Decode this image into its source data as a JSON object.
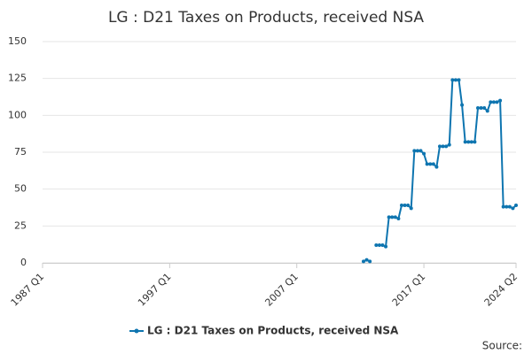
{
  "chart_data": {
    "type": "line",
    "title": "LG : D21 Taxes on Products, received NSA",
    "source_label": "Source:",
    "categories": [
      "1987 Q1",
      null,
      null,
      null,
      null,
      null,
      null,
      null,
      null,
      null,
      null,
      null,
      null,
      null,
      null,
      null,
      null,
      null,
      null,
      null,
      null,
      null,
      null,
      null,
      null,
      null,
      null,
      null,
      null,
      null,
      null,
      null,
      null,
      null,
      null,
      null,
      null,
      null,
      null,
      null,
      "1997 Q1",
      null,
      null,
      null,
      null,
      null,
      null,
      null,
      null,
      null,
      null,
      null,
      null,
      null,
      null,
      null,
      null,
      null,
      null,
      null,
      null,
      null,
      null,
      null,
      null,
      null,
      null,
      null,
      null,
      null,
      null,
      null,
      null,
      null,
      null,
      null,
      null,
      null,
      null,
      null,
      "2007 Q1",
      null,
      null,
      null,
      null,
      null,
      null,
      null,
      null,
      null,
      null,
      null,
      null,
      null,
      null,
      null,
      null,
      null,
      null,
      null,
      null,
      null,
      null,
      null,
      null,
      null,
      null,
      null,
      null,
      null,
      null,
      null,
      null,
      null,
      null,
      null,
      null,
      null,
      null,
      null,
      "2017 Q1",
      null,
      null,
      null,
      null,
      null,
      null,
      null,
      null,
      null,
      null,
      null,
      null,
      null,
      null,
      null,
      null,
      null,
      null,
      null,
      null,
      null,
      null,
      null,
      null,
      null,
      null,
      null,
      null,
      "2024 Q2"
    ],
    "series": [
      {
        "name": "LG : D21 Taxes on Products, received NSA",
        "color": "#0e75b0",
        "values": [
          null,
          null,
          null,
          null,
          null,
          null,
          null,
          null,
          null,
          null,
          null,
          null,
          null,
          null,
          null,
          null,
          null,
          null,
          null,
          null,
          null,
          null,
          null,
          null,
          null,
          null,
          null,
          null,
          null,
          null,
          null,
          null,
          null,
          null,
          null,
          null,
          null,
          null,
          null,
          null,
          null,
          null,
          null,
          null,
          null,
          null,
          null,
          null,
          null,
          null,
          null,
          null,
          null,
          null,
          null,
          null,
          null,
          null,
          null,
          null,
          null,
          null,
          null,
          null,
          null,
          null,
          null,
          null,
          null,
          null,
          null,
          null,
          null,
          null,
          null,
          null,
          null,
          null,
          null,
          null,
          null,
          null,
          null,
          null,
          null,
          null,
          null,
          null,
          null,
          null,
          null,
          null,
          null,
          null,
          null,
          null,
          null,
          null,
          null,
          null,
          null,
          1,
          2,
          1,
          null,
          12,
          12,
          12,
          11,
          31,
          31,
          31,
          30,
          39,
          39,
          39,
          37,
          76,
          76,
          76,
          74,
          67,
          67,
          67,
          65,
          79,
          79,
          79,
          80,
          124,
          124,
          124,
          107,
          82,
          82,
          82,
          82,
          105,
          105,
          105,
          103,
          109,
          109,
          109,
          110,
          38,
          38,
          38,
          37,
          39
        ]
      }
    ],
    "ylim": [
      0,
      150
    ],
    "yticks": [
      0,
      25,
      50,
      75,
      100,
      125,
      150
    ],
    "grid": true
  }
}
